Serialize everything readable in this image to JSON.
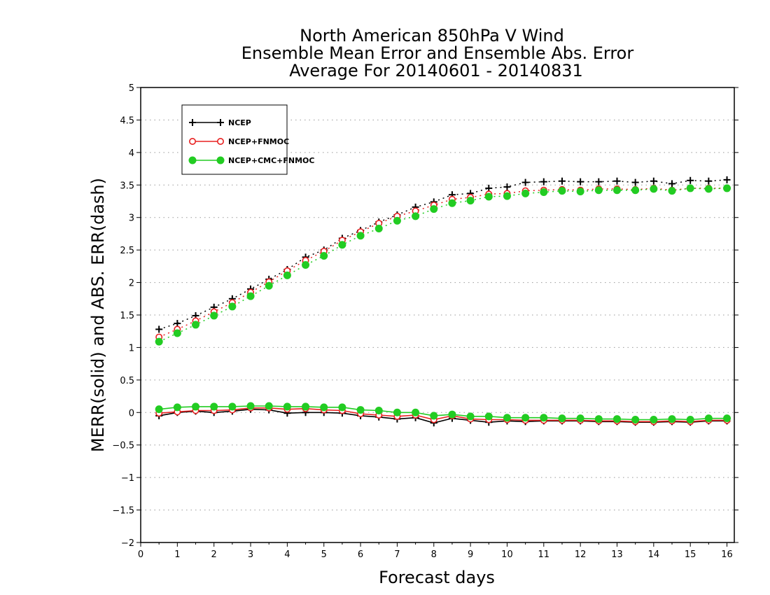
{
  "chart_data": {
    "type": "line",
    "title": [
      "North American 850hPa V Wind",
      "Ensemble Mean Error and Ensemble Abs. Error",
      "Average For 20140601 - 20140831"
    ],
    "xlabel": "Forecast days",
    "ylabel": "MERR(solid) and ABS. ERR(dash)",
    "xlim": [
      0,
      16.2
    ],
    "ylim": [
      -2,
      5
    ],
    "x_ticks": [
      0,
      1,
      2,
      3,
      4,
      5,
      6,
      7,
      8,
      9,
      10,
      11,
      12,
      13,
      14,
      15,
      16
    ],
    "y_ticks": [
      -2,
      -1.5,
      -1,
      -0.5,
      0,
      0.5,
      1,
      1.5,
      2,
      2.5,
      3,
      3.5,
      4,
      4.5,
      5
    ],
    "y_tick_labels": [
      "−2",
      "−1.5",
      "−1",
      "−0.5",
      "0",
      "0.5",
      "1",
      "1.5",
      "2",
      "2.5",
      "3",
      "3.5",
      "4",
      "4.5",
      "5"
    ],
    "grid": "horizontal dotted",
    "legend_position": "top-left",
    "x": [
      0.5,
      1,
      1.5,
      2,
      2.5,
      3,
      3.5,
      4,
      4.5,
      5,
      5.5,
      6,
      6.5,
      7,
      7.5,
      8,
      8.5,
      9,
      9.5,
      10,
      10.5,
      11,
      11.5,
      12,
      12.5,
      13,
      13.5,
      14,
      14.5,
      15,
      15.5,
      16
    ],
    "series": [
      {
        "name": "NCEP",
        "color": "#000000",
        "marker": "plus",
        "abs_err": [
          1.28,
          1.37,
          1.49,
          1.62,
          1.75,
          1.9,
          2.05,
          2.2,
          2.39,
          2.5,
          2.68,
          2.8,
          2.93,
          3.04,
          3.16,
          3.24,
          3.35,
          3.37,
          3.45,
          3.47,
          3.54,
          3.55,
          3.56,
          3.55,
          3.55,
          3.56,
          3.54,
          3.56,
          3.52,
          3.57,
          3.56,
          3.58
        ],
        "mean_err": [
          -0.05,
          0.0,
          0.02,
          0.0,
          0.02,
          0.05,
          0.04,
          -0.01,
          0.0,
          0.0,
          -0.01,
          -0.05,
          -0.07,
          -0.1,
          -0.08,
          -0.16,
          -0.09,
          -0.12,
          -0.15,
          -0.13,
          -0.14,
          -0.13,
          -0.13,
          -0.13,
          -0.14,
          -0.14,
          -0.15,
          -0.15,
          -0.14,
          -0.15,
          -0.13,
          -0.13
        ]
      },
      {
        "name": "NCEP+FNMOC",
        "color": "#e82020",
        "marker": "open-circle",
        "abs_err": [
          1.16,
          1.28,
          1.41,
          1.55,
          1.69,
          1.85,
          2.01,
          2.18,
          2.34,
          2.48,
          2.65,
          2.78,
          2.91,
          3.02,
          3.1,
          3.19,
          3.28,
          3.31,
          3.36,
          3.37,
          3.41,
          3.42,
          3.43,
          3.42,
          3.44,
          3.44,
          3.43,
          3.45,
          3.42,
          3.45,
          3.45,
          3.45
        ],
        "mean_err": [
          -0.01,
          0.01,
          0.03,
          0.03,
          0.04,
          0.07,
          0.07,
          0.05,
          0.06,
          0.04,
          0.03,
          -0.02,
          -0.04,
          -0.06,
          -0.04,
          -0.11,
          -0.05,
          -0.1,
          -0.11,
          -0.11,
          -0.12,
          -0.12,
          -0.12,
          -0.12,
          -0.13,
          -0.13,
          -0.14,
          -0.14,
          -0.13,
          -0.14,
          -0.12,
          -0.12
        ]
      },
      {
        "name": "NCEP+CMC+FNMOC",
        "color": "#22cc22",
        "marker": "filled-circle",
        "abs_err": [
          1.09,
          1.22,
          1.35,
          1.49,
          1.63,
          1.79,
          1.95,
          2.11,
          2.27,
          2.41,
          2.58,
          2.72,
          2.83,
          2.95,
          3.02,
          3.13,
          3.22,
          3.26,
          3.32,
          3.33,
          3.37,
          3.39,
          3.41,
          3.4,
          3.42,
          3.42,
          3.42,
          3.44,
          3.41,
          3.45,
          3.44,
          3.45
        ],
        "mean_err": [
          0.05,
          0.08,
          0.09,
          0.09,
          0.09,
          0.1,
          0.1,
          0.09,
          0.09,
          0.08,
          0.08,
          0.04,
          0.03,
          0.0,
          0.0,
          -0.05,
          -0.03,
          -0.06,
          -0.06,
          -0.08,
          -0.08,
          -0.08,
          -0.09,
          -0.09,
          -0.1,
          -0.1,
          -0.11,
          -0.11,
          -0.1,
          -0.11,
          -0.09,
          -0.09
        ]
      }
    ]
  }
}
